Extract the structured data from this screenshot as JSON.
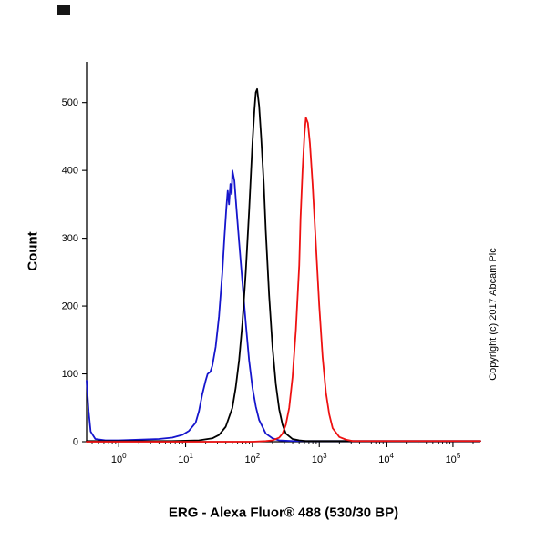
{
  "chart": {
    "title": "ERG - Alexa Fluor® 488 (530/30 BP)",
    "ylabel": "Count",
    "copyright": "Copyright (c) 2017 Abcam Plc"
  },
  "chart_data": {
    "type": "line",
    "subtype": "flow-cytometry-histogram-overlay",
    "title": "ERG - Alexa Fluor® 488 (530/30 BP)",
    "xlabel": "ERG - Alexa Fluor® 488 (530/30 BP)",
    "ylabel": "Count",
    "x_scale": "log10",
    "x_range_log": [
      -0.48,
      5.41
    ],
    "y_range": [
      0,
      560
    ],
    "x_tick_base": "10",
    "x_ticks_exponents": [
      0,
      1,
      2,
      3,
      4,
      5
    ],
    "y_ticks": [
      0,
      100,
      200,
      300,
      400,
      500
    ],
    "grid": false,
    "legend": "none",
    "series": [
      {
        "name": "blue-curve",
        "color": "#1515cc",
        "peak_x_approx": 50,
        "peak_y_approx": 400,
        "points": [
          [
            -0.48,
            90
          ],
          [
            -0.45,
            45
          ],
          [
            -0.42,
            15
          ],
          [
            -0.35,
            4
          ],
          [
            -0.2,
            2
          ],
          [
            0.0,
            2
          ],
          [
            0.3,
            3
          ],
          [
            0.6,
            4
          ],
          [
            0.8,
            6
          ],
          [
            0.95,
            10
          ],
          [
            1.05,
            16
          ],
          [
            1.15,
            28
          ],
          [
            1.2,
            45
          ],
          [
            1.25,
            70
          ],
          [
            1.3,
            90
          ],
          [
            1.33,
            100
          ],
          [
            1.37,
            103
          ],
          [
            1.4,
            112
          ],
          [
            1.45,
            140
          ],
          [
            1.5,
            185
          ],
          [
            1.55,
            250
          ],
          [
            1.58,
            300
          ],
          [
            1.61,
            345
          ],
          [
            1.63,
            370
          ],
          [
            1.65,
            350
          ],
          [
            1.67,
            380
          ],
          [
            1.69,
            365
          ],
          [
            1.7,
            400
          ],
          [
            1.73,
            385
          ],
          [
            1.76,
            345
          ],
          [
            1.8,
            295
          ],
          [
            1.85,
            235
          ],
          [
            1.9,
            175
          ],
          [
            1.95,
            120
          ],
          [
            2.0,
            80
          ],
          [
            2.05,
            52
          ],
          [
            2.1,
            32
          ],
          [
            2.2,
            12
          ],
          [
            2.3,
            5
          ],
          [
            2.4,
            2
          ],
          [
            2.6,
            1
          ],
          [
            3.5,
            1
          ],
          [
            5.41,
            1
          ]
        ]
      },
      {
        "name": "black-curve",
        "color": "#000000",
        "peak_x_approx": 115,
        "peak_y_approx": 520,
        "points": [
          [
            -0.48,
            1
          ],
          [
            0.8,
            1
          ],
          [
            1.2,
            2
          ],
          [
            1.4,
            5
          ],
          [
            1.5,
            10
          ],
          [
            1.6,
            22
          ],
          [
            1.7,
            50
          ],
          [
            1.75,
            80
          ],
          [
            1.8,
            120
          ],
          [
            1.85,
            175
          ],
          [
            1.9,
            250
          ],
          [
            1.95,
            340
          ],
          [
            2.0,
            440
          ],
          [
            2.03,
            490
          ],
          [
            2.05,
            515
          ],
          [
            2.07,
            520
          ],
          [
            2.1,
            495
          ],
          [
            2.13,
            450
          ],
          [
            2.17,
            380
          ],
          [
            2.2,
            310
          ],
          [
            2.25,
            215
          ],
          [
            2.3,
            140
          ],
          [
            2.35,
            85
          ],
          [
            2.4,
            48
          ],
          [
            2.45,
            25
          ],
          [
            2.5,
            12
          ],
          [
            2.6,
            4
          ],
          [
            2.7,
            2
          ],
          [
            2.8,
            1
          ],
          [
            5.41,
            1
          ]
        ]
      },
      {
        "name": "red-curve",
        "color": "#ee1111",
        "peak_x_approx": 560,
        "peak_y_approx": 480,
        "points": [
          [
            -0.48,
            0
          ],
          [
            1.5,
            0
          ],
          [
            2.0,
            0
          ],
          [
            2.2,
            1
          ],
          [
            2.3,
            2
          ],
          [
            2.4,
            6
          ],
          [
            2.45,
            12
          ],
          [
            2.5,
            25
          ],
          [
            2.55,
            50
          ],
          [
            2.6,
            95
          ],
          [
            2.65,
            165
          ],
          [
            2.7,
            260
          ],
          [
            2.72,
            330
          ],
          [
            2.75,
            400
          ],
          [
            2.78,
            455
          ],
          [
            2.8,
            478
          ],
          [
            2.83,
            470
          ],
          [
            2.86,
            440
          ],
          [
            2.9,
            380
          ],
          [
            2.95,
            290
          ],
          [
            3.0,
            200
          ],
          [
            3.05,
            125
          ],
          [
            3.1,
            72
          ],
          [
            3.15,
            40
          ],
          [
            3.2,
            20
          ],
          [
            3.3,
            7
          ],
          [
            3.4,
            3
          ],
          [
            3.5,
            1
          ],
          [
            5.41,
            1
          ]
        ]
      }
    ]
  }
}
